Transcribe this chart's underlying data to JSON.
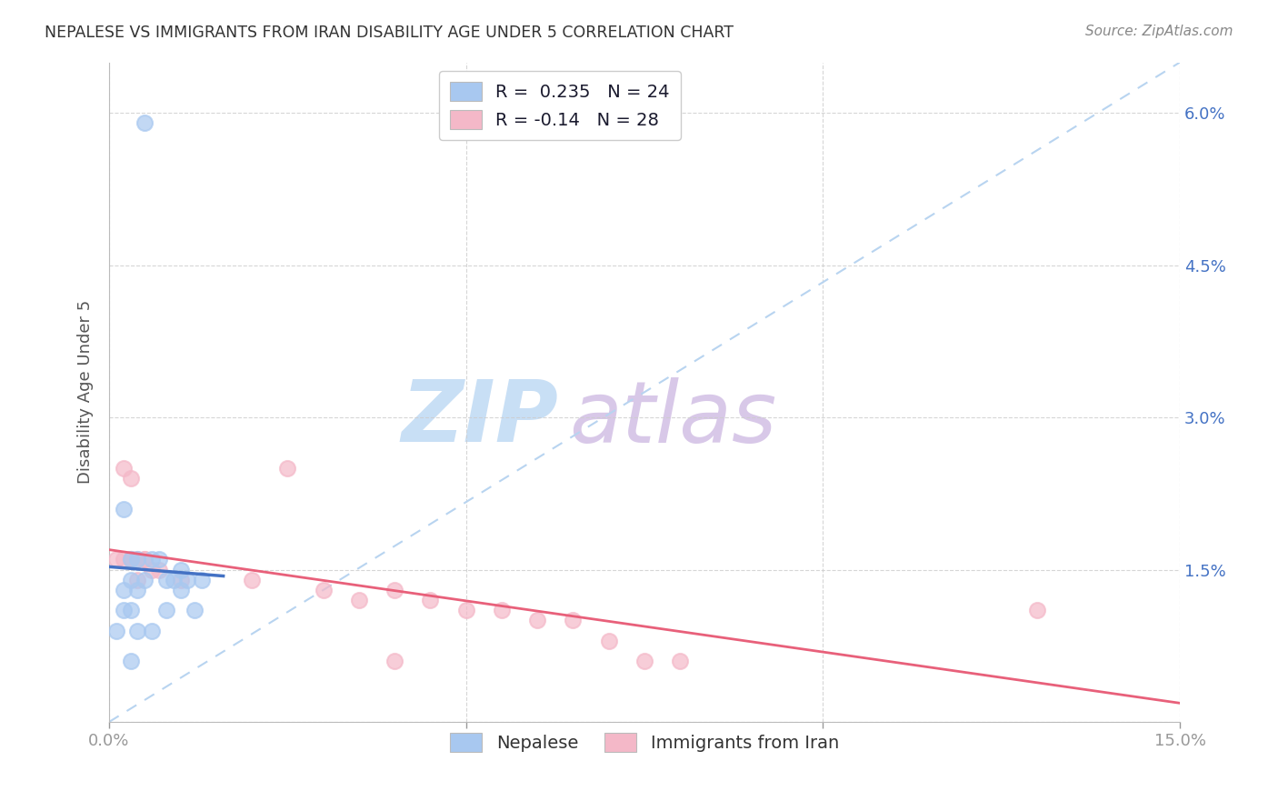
{
  "title": "NEPALESE VS IMMIGRANTS FROM IRAN DISABILITY AGE UNDER 5 CORRELATION CHART",
  "source": "Source: ZipAtlas.com",
  "ylabel": "Disability Age Under 5",
  "xlim": [
    0.0,
    0.15
  ],
  "ylim": [
    0.0,
    0.065
  ],
  "nepalese_R": 0.235,
  "nepalese_N": 24,
  "iran_R": -0.14,
  "iran_N": 28,
  "nepalese_color": "#a8c8f0",
  "iran_color": "#f4b8c8",
  "nepalese_line_color": "#4472c4",
  "iran_line_color": "#e8607a",
  "diagonal_color": "#b8d4f0",
  "background_color": "#ffffff",
  "grid_color": "#cccccc",
  "legend_labels": [
    "Nepalese",
    "Immigrants from Iran"
  ],
  "nepalese_x": [
    0.005,
    0.002,
    0.003,
    0.003,
    0.004,
    0.005,
    0.006,
    0.007,
    0.008,
    0.009,
    0.01,
    0.01,
    0.011,
    0.013,
    0.001,
    0.002,
    0.003,
    0.004,
    0.006,
    0.008,
    0.012,
    0.003,
    0.002,
    0.004
  ],
  "nepalese_y": [
    0.059,
    0.021,
    0.016,
    0.014,
    0.016,
    0.014,
    0.016,
    0.016,
    0.014,
    0.014,
    0.015,
    0.013,
    0.014,
    0.014,
    0.009,
    0.011,
    0.011,
    0.009,
    0.009,
    0.011,
    0.011,
    0.006,
    0.013,
    0.013
  ],
  "iran_x": [
    0.001,
    0.002,
    0.003,
    0.004,
    0.005,
    0.006,
    0.003,
    0.004,
    0.005,
    0.007,
    0.01,
    0.02,
    0.025,
    0.03,
    0.035,
    0.04,
    0.045,
    0.05,
    0.055,
    0.06,
    0.065,
    0.07,
    0.075,
    0.08,
    0.002,
    0.003,
    0.13,
    0.04
  ],
  "iran_y": [
    0.016,
    0.016,
    0.016,
    0.016,
    0.016,
    0.015,
    0.016,
    0.014,
    0.016,
    0.015,
    0.014,
    0.014,
    0.025,
    0.013,
    0.012,
    0.013,
    0.012,
    0.011,
    0.011,
    0.01,
    0.01,
    0.008,
    0.006,
    0.006,
    0.025,
    0.024,
    0.011,
    0.006
  ],
  "watermark_zip_color": "#c8dff5",
  "watermark_atlas_color": "#d8c8e8"
}
